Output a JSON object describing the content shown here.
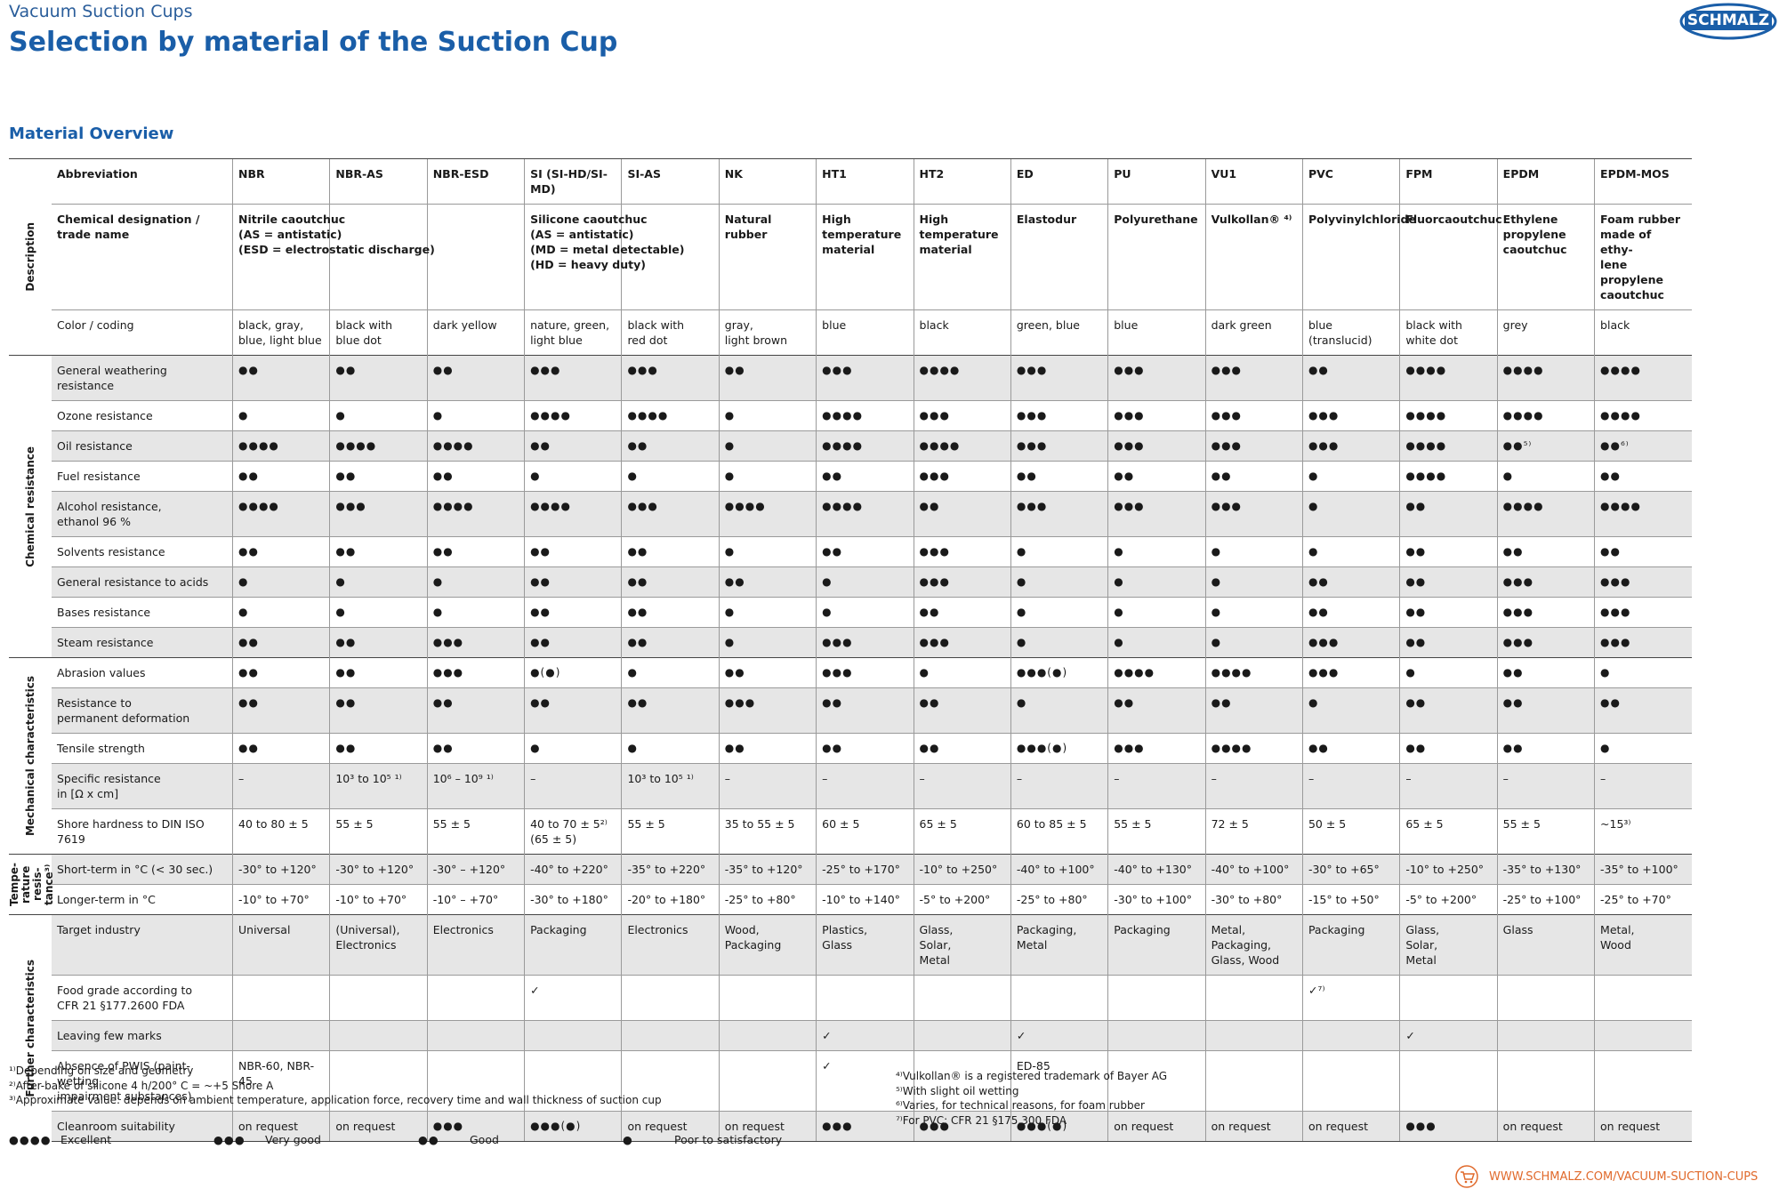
{
  "header": {
    "subtitle": "Vacuum Suction Cups",
    "title": "Selection by material of the Suction Cup",
    "logo": "SCHMALZ"
  },
  "section_title": "Material Overview",
  "table": {
    "groups": [
      {
        "name": "Description",
        "rows": [
          {
            "label": "Abbreviation",
            "cells": [
              "NBR",
              "NBR-AS",
              "NBR-ESD",
              "SI (SI-HD/SI-MD)",
              "SI-AS",
              "NK",
              "HT1",
              "HT2",
              "ED",
              "PU",
              "VU1",
              "PVC",
              "FPM",
              "EPDM",
              "EPDM-MOS"
            ]
          },
          {
            "label": "Chemical designation /\ntrade name",
            "cells": [
              "Nitrile caoutchuc\n(AS = antistatic)\n(ESD = electrostatic discharge)",
              null,
              null,
              "Silicone caoutchuc\n(AS = antistatic)\n(MD = metal detectable)\n(HD = heavy duty)",
              null,
              "Natural\nrubber",
              "High\ntemperature\nmaterial",
              "High\ntemperature\nmaterial",
              "Elastodur",
              "Polyurethane",
              "Vulkollan® ⁴⁾",
              "Polyvinylchloride",
              "Fluorcaoutchuc",
              "Ethylene\npropylene\ncaoutchuc",
              "Foam rubber\nmade of ethy-\nlene propylene\ncaoutchuc"
            ]
          },
          {
            "label": "Color / coding",
            "cells": [
              "black, gray,\nblue, light blue",
              "black with\nblue dot",
              "dark yellow",
              "nature, green,\nlight blue",
              "black with\nred dot",
              "gray,\nlight brown",
              "blue",
              "black",
              "green, blue",
              "blue",
              "dark green",
              "blue\n(translucid)",
              "black with\nwhite dot",
              "grey",
              "black"
            ]
          }
        ]
      },
      {
        "name": "Chemical resistance",
        "rows": [
          {
            "label": "General weathering\nresistance",
            "shaded": true,
            "cells": [
              "●●",
              "●●",
              "●●",
              "●●●",
              "●●●",
              "●●",
              "●●●",
              "●●●●",
              "●●●",
              "●●●",
              "●●●",
              "●●",
              "●●●●",
              "●●●●",
              "●●●●"
            ]
          },
          {
            "label": "Ozone resistance",
            "cells": [
              "●",
              "●",
              "●",
              "●●●●",
              "●●●●",
              "●",
              "●●●●",
              "●●●",
              "●●●",
              "●●●",
              "●●●",
              "●●●",
              "●●●●",
              "●●●●",
              "●●●●"
            ]
          },
          {
            "label": "Oil resistance",
            "shaded": true,
            "cells": [
              "●●●●",
              "●●●●",
              "●●●●",
              "●●",
              "●●",
              "●",
              "●●●●",
              "●●●●",
              "●●●",
              "●●●",
              "●●●",
              "●●●",
              "●●●●",
              "●●⁵⁾",
              "●●⁶⁾"
            ]
          },
          {
            "label": "Fuel resistance",
            "cells": [
              "●●",
              "●●",
              "●●",
              "●",
              "●",
              "●",
              "●●",
              "●●●",
              "●●",
              "●●",
              "●●",
              "●",
              "●●●●",
              "●",
              "●●"
            ]
          },
          {
            "label": "Alcohol resistance,\nethanol 96 %",
            "shaded": true,
            "cells": [
              "●●●●",
              "●●●",
              "●●●●",
              "●●●●",
              "●●●",
              "●●●●",
              "●●●●",
              "●●",
              "●●●",
              "●●●",
              "●●●",
              "●",
              "●●",
              "●●●●",
              "●●●●"
            ]
          },
          {
            "label": "Solvents resistance",
            "cells": [
              "●●",
              "●●",
              "●●",
              "●●",
              "●●",
              "●",
              "●●",
              "●●●",
              "●",
              "●",
              "●",
              "●",
              "●●",
              "●●",
              "●●"
            ]
          },
          {
            "label": "General resistance to acids",
            "shaded": true,
            "cells": [
              "●",
              "●",
              "●",
              "●●",
              "●●",
              "●●",
              "●",
              "●●●",
              "●",
              "●",
              "●",
              "●●",
              "●●",
              "●●●",
              "●●●"
            ]
          },
          {
            "label": "Bases resistance",
            "cells": [
              "●",
              "●",
              "●",
              "●●",
              "●●",
              "●",
              "●",
              "●●",
              "●",
              "●",
              "●",
              "●●",
              "●●",
              "●●●",
              "●●●"
            ]
          },
          {
            "label": "Steam resistance",
            "shaded": true,
            "cells": [
              "●●",
              "●●",
              "●●●",
              "●●",
              "●●",
              "●",
              "●●●",
              "●●●",
              "●",
              "●",
              "●",
              "●●●",
              "●●",
              "●●●",
              "●●●"
            ]
          }
        ]
      },
      {
        "name": "Mechanical characteristics",
        "rows": [
          {
            "label": "Abrasion values",
            "cells": [
              "●●",
              "●●",
              "●●●",
              "●(●)",
              "●",
              "●●",
              "●●●",
              "●",
              "●●●(●)",
              "●●●●",
              "●●●●",
              "●●●",
              "●",
              "●●",
              "●"
            ]
          },
          {
            "label": "Resistance to\npermanent deformation",
            "shaded": true,
            "cells": [
              "●●",
              "●●",
              "●●",
              "●●",
              "●●",
              "●●●",
              "●●",
              "●●",
              "●",
              "●●",
              "●●",
              "●",
              "●●",
              "●●",
              "●●"
            ]
          },
          {
            "label": "Tensile strength",
            "cells": [
              "●●",
              "●●",
              "●●",
              "●",
              "●",
              "●●",
              "●●",
              "●●",
              "●●●(●)",
              "●●●",
              "●●●●",
              "●●",
              "●●",
              "●●",
              "●"
            ]
          },
          {
            "label": "Specific resistance\nin [Ω x cm]",
            "shaded": true,
            "cells": [
              "–",
              "10³ to 10⁵ ¹⁾",
              "10⁶ – 10⁹ ¹⁾",
              "–",
              "10³ to 10⁵ ¹⁾",
              "–",
              "–",
              "–",
              "–",
              "–",
              "–",
              "–",
              "–",
              "–",
              "–"
            ]
          },
          {
            "label": "Shore hardness to DIN ISO 7619",
            "cells": [
              "40 to 80 ± 5",
              "55 ± 5",
              "55 ± 5",
              "40 to 70 ± 5²⁾\n(65 ± 5)",
              "55 ± 5",
              "35 to 55 ± 5",
              "60 ± 5",
              "65 ± 5",
              "60 to 85 ± 5",
              "55 ± 5",
              "72 ± 5",
              "50 ± 5",
              "65 ± 5",
              "55 ± 5",
              "~15³⁾"
            ]
          }
        ]
      },
      {
        "name": "Tempe-\nrature\nresis-\ntance³⁾",
        "rows": [
          {
            "label": "Short-term in °C (< 30 sec.)",
            "shaded": true,
            "cells": [
              "-30° to +120°",
              "-30° to +120°",
              "-30° – +120°",
              "-40° to +220°",
              "-35° to +220°",
              "-35° to +120°",
              "-25° to +170°",
              "-10° to +250°",
              "-40° to +100°",
              "-40° to +130°",
              "-40° to +100°",
              "-30° to +65°",
              "-10° to +250°",
              "-35° to +130°",
              "-35° to +100°"
            ]
          },
          {
            "label": "Longer-term in °C",
            "cells": [
              "-10° to +70°",
              "-10° to +70°",
              "-10° – +70°",
              "-30° to +180°",
              "-20° to +180°",
              "-25° to +80°",
              "-10° to +140°",
              "-5° to +200°",
              "-25° to +80°",
              "-30° to +100°",
              "-30° to +80°",
              "-15° to +50°",
              "-5° to +200°",
              "-25° to +100°",
              "-25° to +70°"
            ]
          }
        ]
      },
      {
        "name": "Further characteristics",
        "rows": [
          {
            "label": "Target industry",
            "shaded": true,
            "cells": [
              "Universal",
              "(Universal),\nElectronics",
              "Electronics",
              "Packaging",
              "Electronics",
              "Wood,\nPackaging",
              "Plastics,\nGlass",
              "Glass,\nSolar,\nMetal",
              "Packaging,\nMetal",
              "Packaging",
              "Metal,\nPackaging,\nGlass, Wood",
              "Packaging",
              "Glass,\nSolar,\nMetal",
              "Glass",
              "Metal,\nWood"
            ]
          },
          {
            "label": "Food grade according to\nCFR 21 §177.2600 FDA",
            "cells": [
              null,
              null,
              null,
              "✓",
              null,
              null,
              null,
              null,
              null,
              null,
              null,
              "✓⁷⁾",
              null,
              null,
              null
            ]
          },
          {
            "label": "Leaving few marks",
            "shaded": true,
            "cells": [
              null,
              null,
              null,
              null,
              null,
              null,
              "✓",
              null,
              "✓",
              null,
              null,
              null,
              "✓",
              null,
              null
            ]
          },
          {
            "label": "Absence of PWIS (paint-wetting\nimpairment substances)",
            "cells": [
              "NBR-60, NBR-45",
              null,
              null,
              null,
              null,
              null,
              "✓",
              null,
              "ED-85",
              null,
              null,
              null,
              null,
              null,
              null
            ]
          },
          {
            "label": "Cleanroom suitability",
            "shaded": true,
            "cells": [
              "on request",
              "on request",
              "●●●",
              "●●●(●)",
              "on request",
              "on request",
              "●●●",
              "●●●",
              "●●●(●)",
              "on request",
              "on request",
              "on request",
              "●●●",
              "on request",
              "on request"
            ]
          }
        ]
      }
    ]
  },
  "footnotes_left": [
    "¹⁾Depending on size and geometry",
    "²⁾After-bake of silicone 4 h/200° C = ~+5 Shore A",
    "³⁾Approximate value: depends on ambient temperature, application force, recovery time and wall thickness of suction cup"
  ],
  "footnotes_right": [
    "⁴⁾Vulkollan® is a registered trademark of Bayer AG",
    "⁵⁾With slight oil wetting",
    "⁶⁾Varies, for technical reasons, for foam rubber",
    "⁷⁾For PVC: CFR 21 §175.300 FDA"
  ],
  "legend": [
    {
      "symbol": "●●●●",
      "label": "Excellent"
    },
    {
      "symbol": "●●●",
      "label": "Very good"
    },
    {
      "symbol": "●●",
      "label": "Good"
    },
    {
      "symbol": "●",
      "label": "Poor to satisfactory"
    }
  ],
  "footer_url": "WWW.SCHMALZ.COM/VACUUM-SUCTION-CUPS"
}
